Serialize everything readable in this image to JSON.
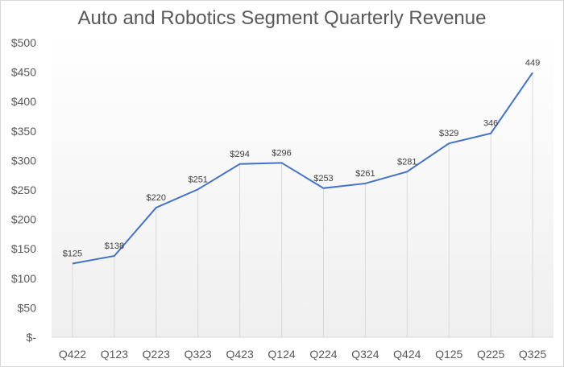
{
  "chart_data": {
    "type": "line",
    "title": "Auto and Robotics Segment Quarterly Revenue",
    "categories": [
      "Q422",
      "Q123",
      "Q223",
      "Q323",
      "Q423",
      "Q124",
      "Q224",
      "Q324",
      "Q424",
      "Q125",
      "Q225",
      "Q325"
    ],
    "values": [
      125,
      138,
      220,
      251,
      294,
      296,
      253,
      261,
      281,
      329,
      346,
      449
    ],
    "data_labels": [
      "$125",
      "$138",
      "$220",
      "$251",
      "$294",
      "$296",
      "$253",
      "$261",
      "$281",
      "$329",
      "346",
      "449"
    ],
    "ylim": [
      0,
      500
    ],
    "yticks": [
      0,
      50,
      100,
      150,
      200,
      250,
      300,
      350,
      400,
      450,
      500
    ],
    "ytick_labels": [
      "$-",
      "$50",
      "$100",
      "$150",
      "$200",
      "$250",
      "$300",
      "$350",
      "$400",
      "$450",
      "$500"
    ],
    "xlabel": "",
    "ylabel": "",
    "grid": false,
    "drop_lines": true,
    "legend": "none",
    "line_color": "#4472c4"
  }
}
